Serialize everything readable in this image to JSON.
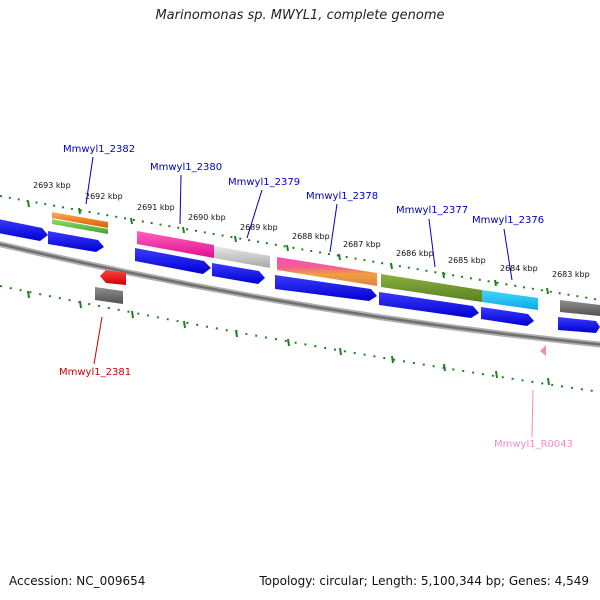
{
  "title": "Marinomonas sp. MWYL1, complete genome",
  "accession": "Accession: NC_009654",
  "summary": "Topology: circular; Length: 5,100,344 bp; Genes: 4,549",
  "colors": {
    "backbone": "#808080",
    "tick": "#208020",
    "cds": "#0000ee",
    "label_forward": "#0000cc",
    "label_reverse": "#cc0000",
    "label_rna": "#f48cc0"
  },
  "ticks": [
    "2693 kbp",
    "2692 kbp",
    "2691 kbp",
    "2690 kbp",
    "2689 kbp",
    "2688 kbp",
    "2687 kbp",
    "2686 kbp",
    "2685 kbp",
    "2684 kbp",
    "2683 kbp"
  ],
  "gene_labels": [
    "Mmwyl1_2382",
    "Mmwyl1_2380",
    "Mmwyl1_2379",
    "Mmwyl1_2378",
    "Mmwyl1_2377",
    "Mmwyl1_2376",
    "Mmwyl1_2381",
    "Mmwyl1_R0043"
  ]
}
